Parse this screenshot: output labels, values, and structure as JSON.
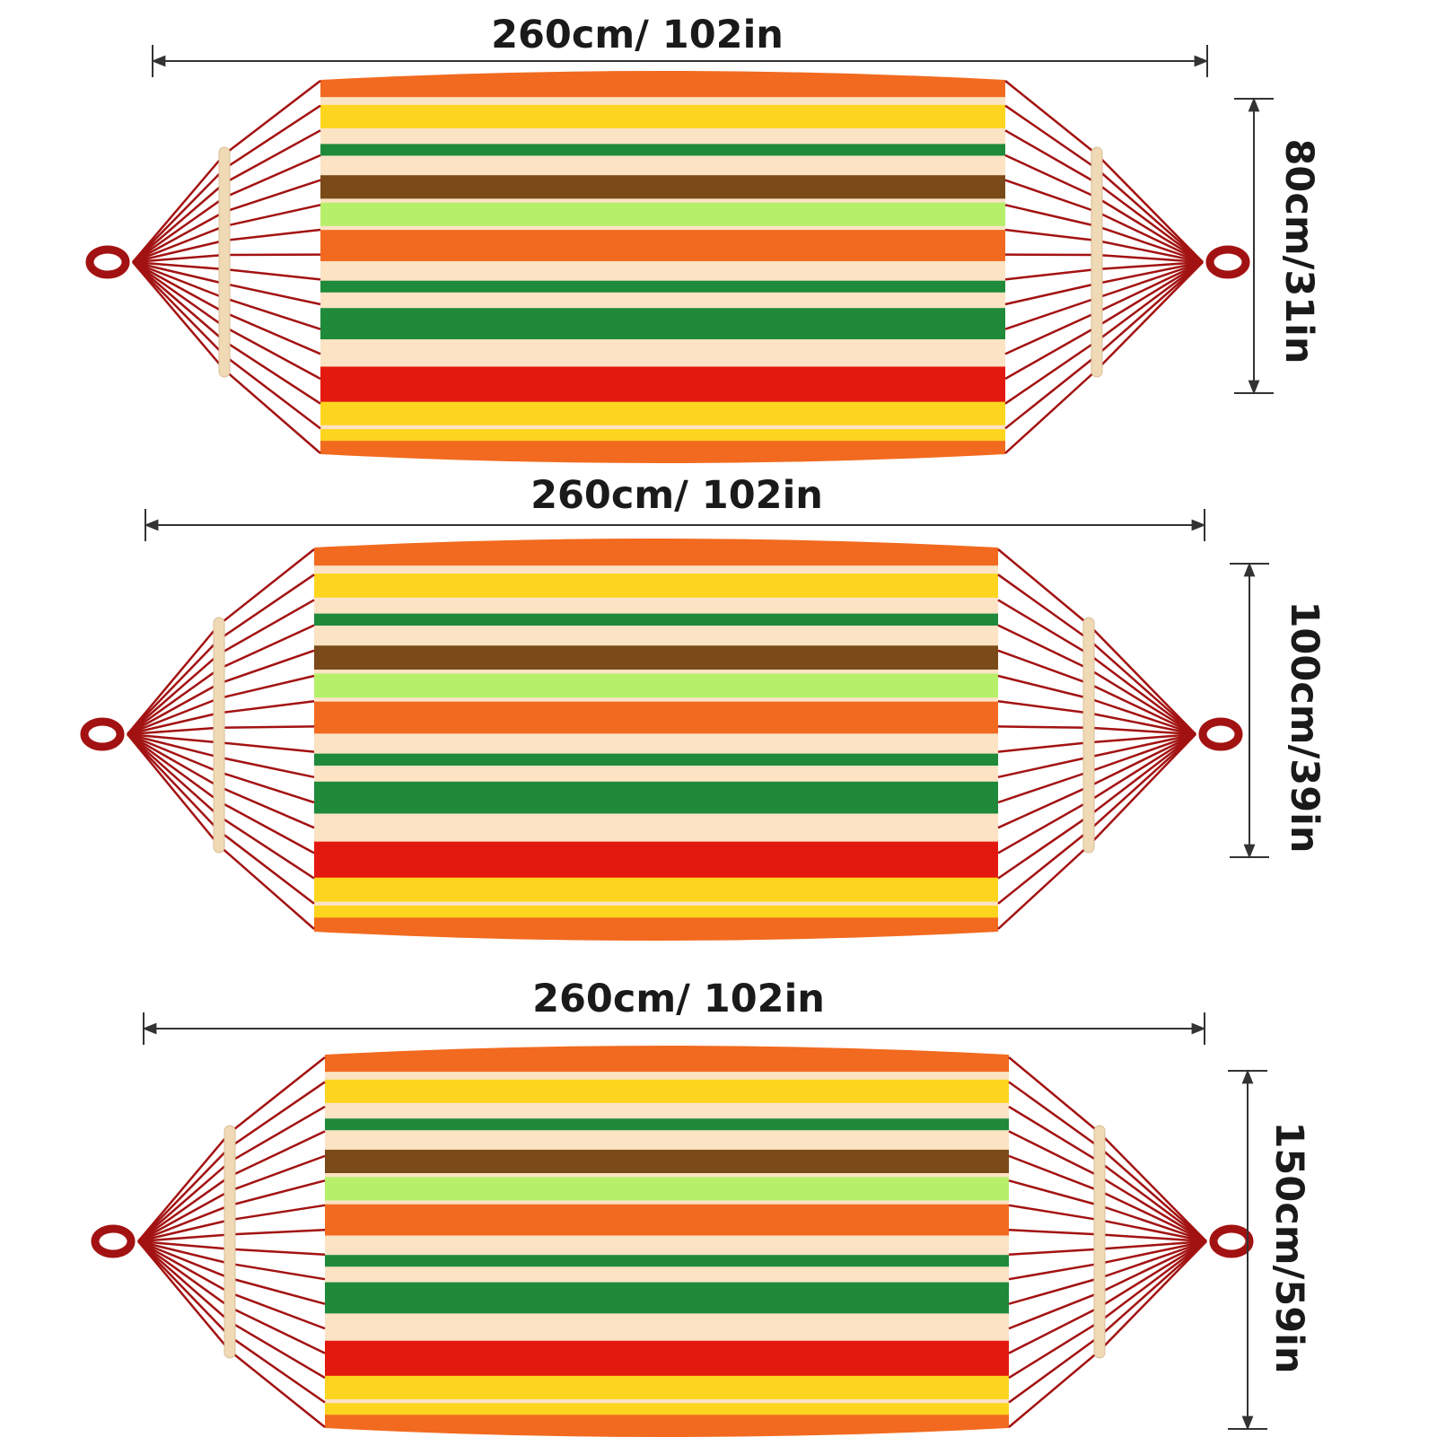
{
  "hammocks": [
    {
      "id": "hammock-1",
      "length_label": "260cm/ 102in",
      "width_label": "80cm/31in"
    },
    {
      "id": "hammock-2",
      "length_label": "260cm/ 102in",
      "width_label": "100cm/39in"
    },
    {
      "id": "hammock-3",
      "length_label": "260cm/ 102in",
      "width_label": "150cm/59in"
    }
  ],
  "stripe_pattern": [
    {
      "color": "#f26a1f",
      "weight": 4.5
    },
    {
      "color": "#fbe3c4",
      "weight": 1
    },
    {
      "color": "#fdd51f",
      "weight": 3
    },
    {
      "color": "#fbe3c4",
      "weight": 2
    },
    {
      "color": "#1f8a3a",
      "weight": 1.5
    },
    {
      "color": "#fbe3c4",
      "weight": 2.5
    },
    {
      "color": "#7a4a18",
      "weight": 3
    },
    {
      "color": "#fbe3c4",
      "weight": 0.5
    },
    {
      "color": "#b6f06a",
      "weight": 3
    },
    {
      "color": "#fbe3c4",
      "weight": 0.5
    },
    {
      "color": "#f26a1f",
      "weight": 4
    },
    {
      "color": "#fbe3c4",
      "weight": 2.5
    },
    {
      "color": "#1f8a3a",
      "weight": 1.5
    },
    {
      "color": "#fbe3c4",
      "weight": 2
    },
    {
      "color": "#1f8a3a",
      "weight": 4
    },
    {
      "color": "#fbe3c4",
      "weight": 3.5
    },
    {
      "color": "#e3180f",
      "weight": 4.5
    },
    {
      "color": "#fdd51f",
      "weight": 3
    },
    {
      "color": "#fbe3c4",
      "weight": 0.5
    },
    {
      "color": "#fdd51f",
      "weight": 1.5
    },
    {
      "color": "#f26a1f",
      "weight": 4
    }
  ],
  "colors": {
    "rope": "#a31212",
    "spreader_bar": "#f0d9b5",
    "dimension_line": "#333333",
    "text": "#1a1a1a"
  },
  "icons": [
    "hammock",
    "ring-icon",
    "spreader-bar",
    "dimension-arrow"
  ]
}
